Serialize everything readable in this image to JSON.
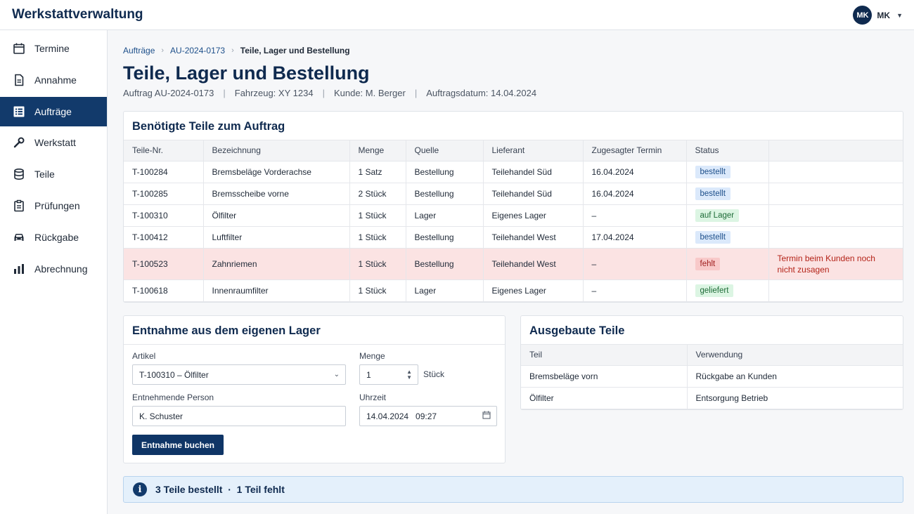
{
  "app": {
    "title": "Werkstattverwaltung"
  },
  "user": {
    "initials": "MK",
    "name": "MK"
  },
  "sidebar": {
    "items": [
      {
        "label": "Termine",
        "icon": "calendar-icon",
        "active": false
      },
      {
        "label": "Annahme",
        "icon": "document-icon",
        "active": false
      },
      {
        "label": "Aufträge",
        "icon": "list-icon",
        "active": true
      },
      {
        "label": "Werkstatt",
        "icon": "wrench-icon",
        "active": false
      },
      {
        "label": "Teile",
        "icon": "stack-icon",
        "active": false
      },
      {
        "label": "Prüfungen",
        "icon": "clipboard-icon",
        "active": false
      },
      {
        "label": "Rückgabe",
        "icon": "car-icon",
        "active": false
      },
      {
        "label": "Abrechnung",
        "icon": "bar-chart-icon",
        "active": false
      }
    ]
  },
  "breadcrumb": {
    "items": [
      "Aufträge",
      "AU-2024-0173"
    ],
    "current": "Teile, Lager und Bestellung"
  },
  "page": {
    "title": "Teile, Lager und Bestellung",
    "meta": [
      "Auftrag AU-2024-0173",
      "Fahrzeug: XY 1234",
      "Kunde: M. Berger",
      "Auftragsdatum: 14.04.2024"
    ]
  },
  "parts": {
    "title": "Benötigte Teile zum Auftrag",
    "columns": [
      "Teile-Nr.",
      "Bezeichnung",
      "Menge",
      "Quelle",
      "Lieferant",
      "Zugesagter Termin",
      "Status",
      ""
    ],
    "rows": [
      {
        "nr": "T-100284",
        "name": "Bremsbeläge Vorderachse",
        "qty": "1 Satz",
        "source": "Bestellung",
        "supplier": "Teilehandel Süd",
        "date": "16.04.2024",
        "status": "bestellt",
        "note": ""
      },
      {
        "nr": "T-100285",
        "name": "Bremsscheibe vorne",
        "qty": "2 Stück",
        "source": "Bestellung",
        "supplier": "Teilehandel Süd",
        "date": "16.04.2024",
        "status": "bestellt",
        "note": ""
      },
      {
        "nr": "T-100310",
        "name": "Ölfilter",
        "qty": "1 Stück",
        "source": "Lager",
        "supplier": "Eigenes Lager",
        "date": "–",
        "status": "auf Lager",
        "note": ""
      },
      {
        "nr": "T-100412",
        "name": "Luftfilter",
        "qty": "1 Stück",
        "source": "Bestellung",
        "supplier": "Teilehandel West",
        "date": "17.04.2024",
        "status": "bestellt",
        "note": ""
      },
      {
        "nr": "T-100523",
        "name": "Zahnriemen",
        "qty": "1 Stück",
        "source": "Bestellung",
        "supplier": "Teilehandel West",
        "date": "–",
        "status": "fehlt",
        "note": "Termin beim Kunden noch nicht zusagen"
      },
      {
        "nr": "T-100618",
        "name": "Innenraumfilter",
        "qty": "1 Stück",
        "source": "Lager",
        "supplier": "Eigenes Lager",
        "date": "–",
        "status": "geliefert",
        "note": ""
      }
    ]
  },
  "withdrawal": {
    "title": "Entnahme aus dem eigenen Lager",
    "article_label": "Artikel",
    "article_value": "T-100310 – Ölfilter",
    "qty_label": "Menge",
    "qty_value": "1",
    "qty_unit": "Stück",
    "person_label": "Entnehmende Person",
    "person_value": "K. Schuster",
    "time_label": "Uhrzeit",
    "time_value": "14.04.2024   09:27",
    "button": "Entnahme buchen"
  },
  "removed": {
    "title": "Ausgebaute Teile",
    "columns": [
      "Teil",
      "Verwendung"
    ],
    "rows": [
      {
        "part": "Bremsbeläge vorn",
        "use": "Rückgabe an Kunden"
      },
      {
        "part": "Ölfilter",
        "use": "Entsorgung Betrieb"
      }
    ]
  },
  "summary": {
    "text": "3 Teile bestellt  ·  1 Teil fehlt"
  },
  "colors": {
    "primary": "#0f2a4f",
    "active_nav": "#123a6b",
    "missing_row": "#fbe3e3"
  }
}
